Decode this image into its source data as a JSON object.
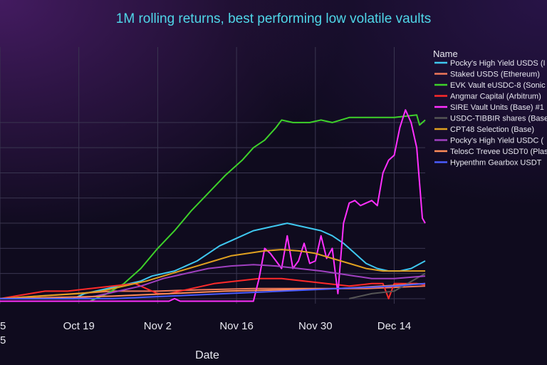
{
  "chart_data": {
    "type": "line",
    "title": "1M rolling returns, best performing low volatile vaults",
    "xlabel": "Date",
    "ylabel": "",
    "x_ticks": [
      {
        "label": "5",
        "sub": "5",
        "day": 0
      },
      {
        "label": "Oct 19",
        "day": 14
      },
      {
        "label": "Nov 2",
        "day": 28
      },
      {
        "label": "Nov 16",
        "day": 42
      },
      {
        "label": "Nov 30",
        "day": 56
      },
      {
        "label": "Dec 14",
        "day": 70
      }
    ],
    "x_range": [
      0,
      75.5
    ],
    "y_range": [
      -0.02,
      1.0
    ],
    "y_grid": [
      0.0,
      0.1,
      0.2,
      0.3,
      0.4,
      0.5,
      0.6,
      0.7
    ],
    "grid": true,
    "legend_title": "Name",
    "legend_position": "right",
    "series": [
      {
        "name": "Pocky's High Yield USDS (I",
        "color": "#3fc8f0",
        "points": [
          [
            0,
            0
          ],
          [
            13,
            0
          ],
          [
            15,
            0.02
          ],
          [
            17,
            0.03
          ],
          [
            19,
            0.04
          ],
          [
            21,
            0.05
          ],
          [
            23,
            0.06
          ],
          [
            25,
            0.07
          ],
          [
            27,
            0.09
          ],
          [
            29,
            0.1
          ],
          [
            31,
            0.11
          ],
          [
            33,
            0.13
          ],
          [
            35,
            0.15
          ],
          [
            37,
            0.18
          ],
          [
            39,
            0.21
          ],
          [
            41,
            0.23
          ],
          [
            43,
            0.25
          ],
          [
            45,
            0.27
          ],
          [
            47,
            0.28
          ],
          [
            49,
            0.29
          ],
          [
            51,
            0.3
          ],
          [
            53,
            0.29
          ],
          [
            55,
            0.28
          ],
          [
            57,
            0.27
          ],
          [
            59,
            0.25
          ],
          [
            61,
            0.22
          ],
          [
            63,
            0.18
          ],
          [
            65,
            0.14
          ],
          [
            67,
            0.12
          ],
          [
            69,
            0.11
          ],
          [
            71,
            0.11
          ],
          [
            73,
            0.12
          ],
          [
            75.5,
            0.15
          ]
        ]
      },
      {
        "name": "Staked USDS (Ethereum)",
        "color": "#f0785a",
        "points": [
          [
            0,
            0
          ],
          [
            20,
            0.03
          ],
          [
            28,
            0.03
          ],
          [
            35,
            0.035
          ],
          [
            45,
            0.04
          ],
          [
            55,
            0.04
          ],
          [
            65,
            0.04
          ],
          [
            75.5,
            0.05
          ]
        ]
      },
      {
        "name": "EVK Vault eUSDC-8 (Sonic",
        "color": "#3ed12a",
        "points": [
          [
            16,
            -0.01
          ],
          [
            19,
            0.02
          ],
          [
            22,
            0.06
          ],
          [
            25,
            0.12
          ],
          [
            28,
            0.2
          ],
          [
            31,
            0.27
          ],
          [
            34,
            0.35
          ],
          [
            37,
            0.42
          ],
          [
            40,
            0.49
          ],
          [
            43,
            0.55
          ],
          [
            45,
            0.6
          ],
          [
            47,
            0.63
          ],
          [
            49,
            0.68
          ],
          [
            50,
            0.71
          ],
          [
            52,
            0.7
          ],
          [
            55,
            0.7
          ],
          [
            57,
            0.71
          ],
          [
            59,
            0.7
          ],
          [
            62,
            0.72
          ],
          [
            66,
            0.72
          ],
          [
            70,
            0.72
          ],
          [
            74,
            0.73
          ],
          [
            74.5,
            0.69
          ],
          [
            75.5,
            0.71
          ]
        ]
      },
      {
        "name": "Angmar Capital (Arbitrum)",
        "color": "#ff2a2a",
        "points": [
          [
            0,
            0
          ],
          [
            8,
            0.03
          ],
          [
            12,
            0.03
          ],
          [
            16,
            0.04
          ],
          [
            20,
            0.05
          ],
          [
            24,
            0.06
          ],
          [
            28,
            0.02
          ],
          [
            30,
            0.02
          ],
          [
            34,
            0.04
          ],
          [
            38,
            0.06
          ],
          [
            42,
            0.07
          ],
          [
            46,
            0.08
          ],
          [
            50,
            0.08
          ],
          [
            54,
            0.07
          ],
          [
            58,
            0.06
          ],
          [
            62,
            0.05
          ],
          [
            66,
            0.06
          ],
          [
            68,
            0.06
          ],
          [
            69,
            0.0
          ],
          [
            70,
            0.06
          ],
          [
            74,
            0.06
          ],
          [
            75.5,
            0.055
          ]
        ]
      },
      {
        "name": "SIRE Vault Units (Base) #1",
        "color": "#ff30ff",
        "points": [
          [
            0,
            -0.01
          ],
          [
            15,
            -0.01
          ],
          [
            30,
            -0.01
          ],
          [
            31,
            0.0
          ],
          [
            32,
            -0.01
          ],
          [
            45,
            -0.01
          ],
          [
            46,
            0.08
          ],
          [
            47,
            0.2
          ],
          [
            48,
            0.18
          ],
          [
            49,
            0.15
          ],
          [
            50,
            0.12
          ],
          [
            51,
            0.25
          ],
          [
            52,
            0.12
          ],
          [
            53,
            0.15
          ],
          [
            54,
            0.22
          ],
          [
            55,
            0.14
          ],
          [
            56,
            0.15
          ],
          [
            57,
            0.25
          ],
          [
            58,
            0.16
          ],
          [
            59,
            0.2
          ],
          [
            60,
            0.02
          ],
          [
            61,
            0.3
          ],
          [
            62,
            0.38
          ],
          [
            63,
            0.39
          ],
          [
            64,
            0.37
          ],
          [
            65,
            0.38
          ],
          [
            66,
            0.39
          ],
          [
            67,
            0.37
          ],
          [
            68,
            0.5
          ],
          [
            69,
            0.55
          ],
          [
            70,
            0.57
          ],
          [
            71,
            0.68
          ],
          [
            72,
            0.75
          ],
          [
            73,
            0.7
          ],
          [
            74,
            0.6
          ],
          [
            75,
            0.32
          ],
          [
            75.5,
            0.3
          ]
        ]
      },
      {
        "name": "USDC-TIBBIR shares (Base",
        "color": "#555555",
        "points": [
          [
            62,
            0.0
          ],
          [
            66,
            0.02
          ],
          [
            70,
            0.03
          ],
          [
            75.5,
            0.1
          ]
        ]
      },
      {
        "name": "CPT48 Selection (Base)",
        "color": "#e0a020",
        "points": [
          [
            0,
            0
          ],
          [
            14,
            0.02
          ],
          [
            18,
            0.03
          ],
          [
            22,
            0.05
          ],
          [
            26,
            0.07
          ],
          [
            29,
            0.09
          ],
          [
            32,
            0.11
          ],
          [
            35,
            0.13
          ],
          [
            38,
            0.15
          ],
          [
            41,
            0.17
          ],
          [
            44,
            0.18
          ],
          [
            47,
            0.19
          ],
          [
            50,
            0.195
          ],
          [
            53,
            0.19
          ],
          [
            56,
            0.18
          ],
          [
            59,
            0.16
          ],
          [
            62,
            0.14
          ],
          [
            65,
            0.12
          ],
          [
            68,
            0.11
          ],
          [
            71,
            0.11
          ],
          [
            75.5,
            0.11
          ]
        ]
      },
      {
        "name": "Pocky's High Yield USDC (",
        "color": "#a040c0",
        "points": [
          [
            13,
            0
          ],
          [
            17,
            0.01
          ],
          [
            21,
            0.03
          ],
          [
            25,
            0.05
          ],
          [
            29,
            0.08
          ],
          [
            33,
            0.1
          ],
          [
            37,
            0.12
          ],
          [
            41,
            0.13
          ],
          [
            45,
            0.135
          ],
          [
            49,
            0.13
          ],
          [
            53,
            0.12
          ],
          [
            57,
            0.11
          ],
          [
            60,
            0.1
          ],
          [
            63,
            0.09
          ],
          [
            66,
            0.08
          ],
          [
            70,
            0.08
          ],
          [
            75.5,
            0.09
          ]
        ]
      },
      {
        "name": "TelosC Trevee USDT0 (Plas",
        "color": "#ff8c5a",
        "points": [
          [
            0,
            0
          ],
          [
            20,
            0.01
          ],
          [
            30,
            0.02
          ],
          [
            40,
            0.03
          ],
          [
            50,
            0.035
          ],
          [
            60,
            0.04
          ],
          [
            75.5,
            0.06
          ]
        ]
      },
      {
        "name": "Hypenthm Gearbox USDT",
        "color": "#4a5cff",
        "points": [
          [
            0,
            0
          ],
          [
            20,
            0.0
          ],
          [
            30,
            0.01
          ],
          [
            40,
            0.02
          ],
          [
            50,
            0.03
          ],
          [
            60,
            0.04
          ],
          [
            70,
            0.05
          ],
          [
            75.5,
            0.06
          ]
        ]
      }
    ]
  }
}
